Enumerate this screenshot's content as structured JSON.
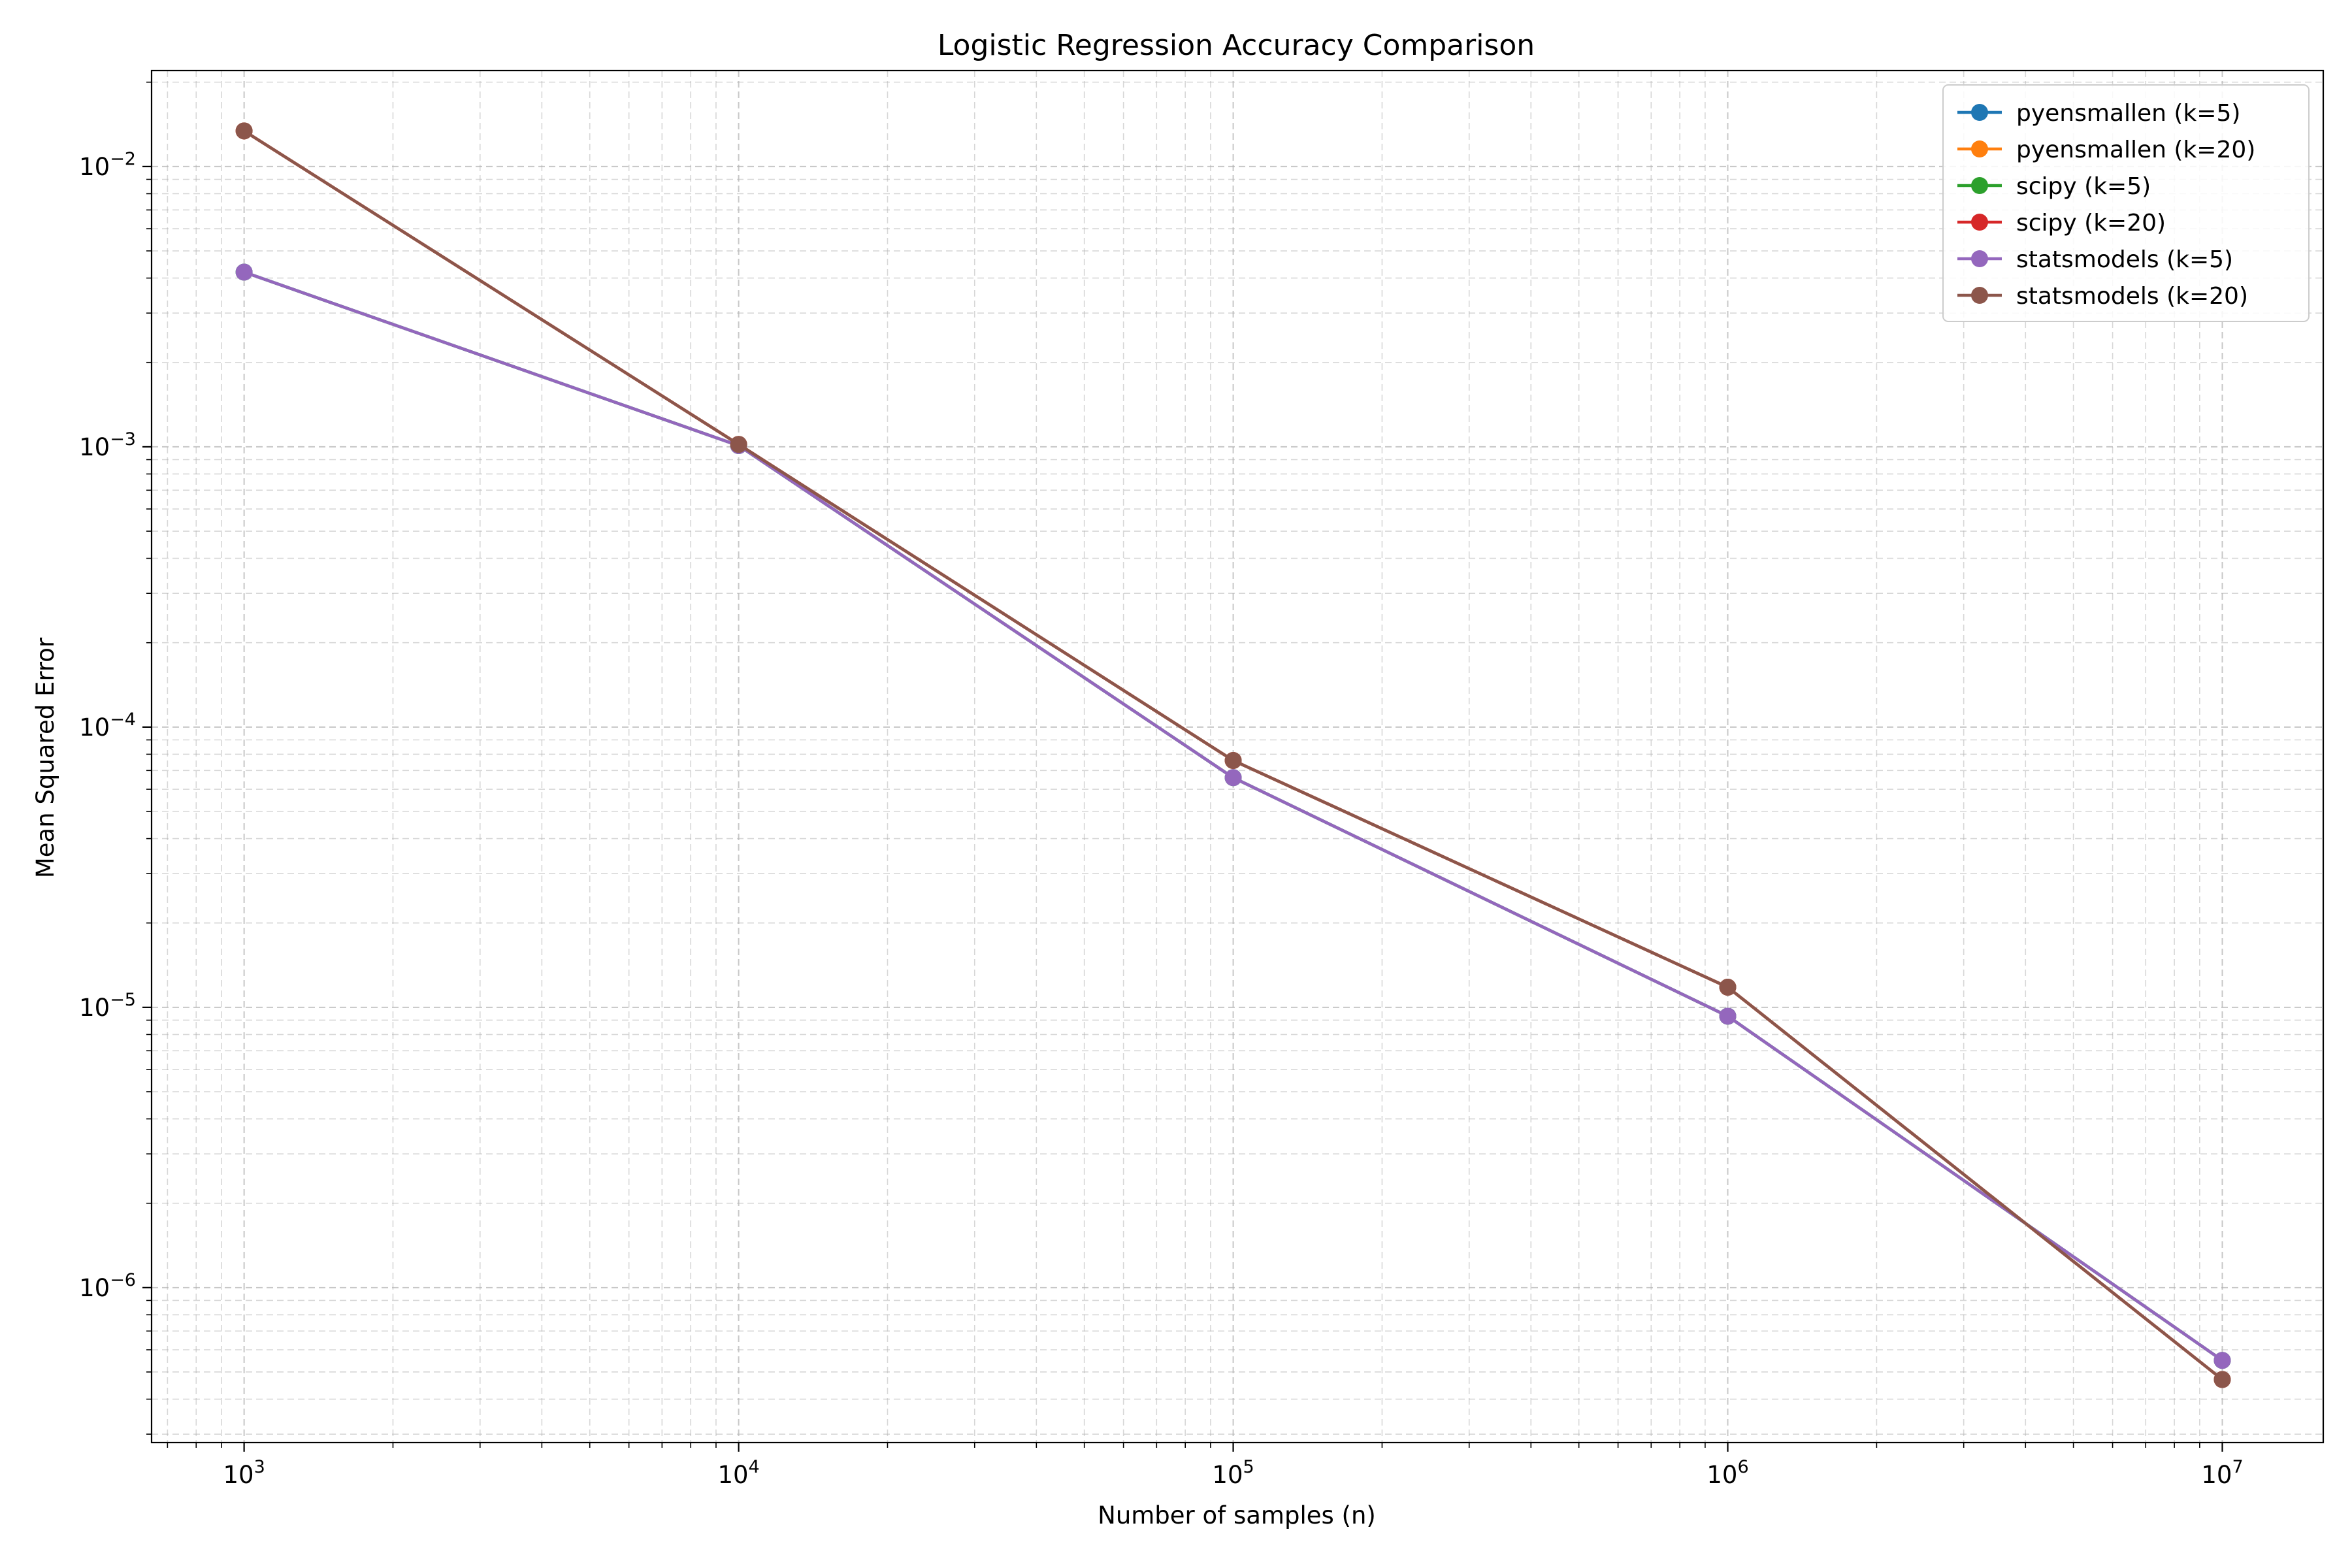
{
  "chart_data": {
    "type": "line",
    "title": "Logistic Regression Accuracy Comparison",
    "xlabel": "Number of samples (n)",
    "ylabel": "Mean Squared Error",
    "x_scale": "log",
    "y_scale": "log",
    "xlim": [
      650,
      16000000
    ],
    "ylim": [
      2.8e-07,
      0.022
    ],
    "grid": true,
    "legend_position": "top-right",
    "x_ticks": [
      {
        "base": "10",
        "exp": "3",
        "value": 1000
      },
      {
        "base": "10",
        "exp": "4",
        "value": 10000
      },
      {
        "base": "10",
        "exp": "5",
        "value": 100000
      },
      {
        "base": "10",
        "exp": "6",
        "value": 1000000
      },
      {
        "base": "10",
        "exp": "7",
        "value": 10000000
      }
    ],
    "y_ticks": [
      {
        "base": "10",
        "exp": "−2",
        "value": 0.01
      },
      {
        "base": "10",
        "exp": "−3",
        "value": 0.001
      },
      {
        "base": "10",
        "exp": "−4",
        "value": 0.0001
      },
      {
        "base": "10",
        "exp": "−5",
        "value": 1e-05
      },
      {
        "base": "10",
        "exp": "−6",
        "value": 1e-06
      }
    ],
    "x": [
      1000,
      10000,
      100000,
      1000000,
      10000000
    ],
    "series": [
      {
        "name": "pyensmallen (k=5)",
        "color": "#1f77b4",
        "values": [
          0.0042,
          0.00101,
          6.6e-05,
          9.3e-06,
          5.5e-07
        ]
      },
      {
        "name": "pyensmallen (k=20)",
        "color": "#ff7f0e",
        "values": [
          0.0134,
          0.00102,
          7.6e-05,
          1.18e-05,
          4.7e-07
        ]
      },
      {
        "name": "scipy (k=5)",
        "color": "#2ca02c",
        "values": [
          0.0042,
          0.00101,
          6.6e-05,
          9.3e-06,
          5.5e-07
        ]
      },
      {
        "name": "scipy (k=20)",
        "color": "#d62728",
        "values": [
          0.0134,
          0.00102,
          7.6e-05,
          1.18e-05,
          4.7e-07
        ]
      },
      {
        "name": "statsmodels (k=5)",
        "color": "#9467bd",
        "values": [
          0.0042,
          0.00101,
          6.6e-05,
          9.3e-06,
          5.5e-07
        ]
      },
      {
        "name": "statsmodels (k=20)",
        "color": "#8c564b",
        "values": [
          0.0134,
          0.00102,
          7.6e-05,
          1.18e-05,
          4.7e-07
        ]
      }
    ]
  }
}
